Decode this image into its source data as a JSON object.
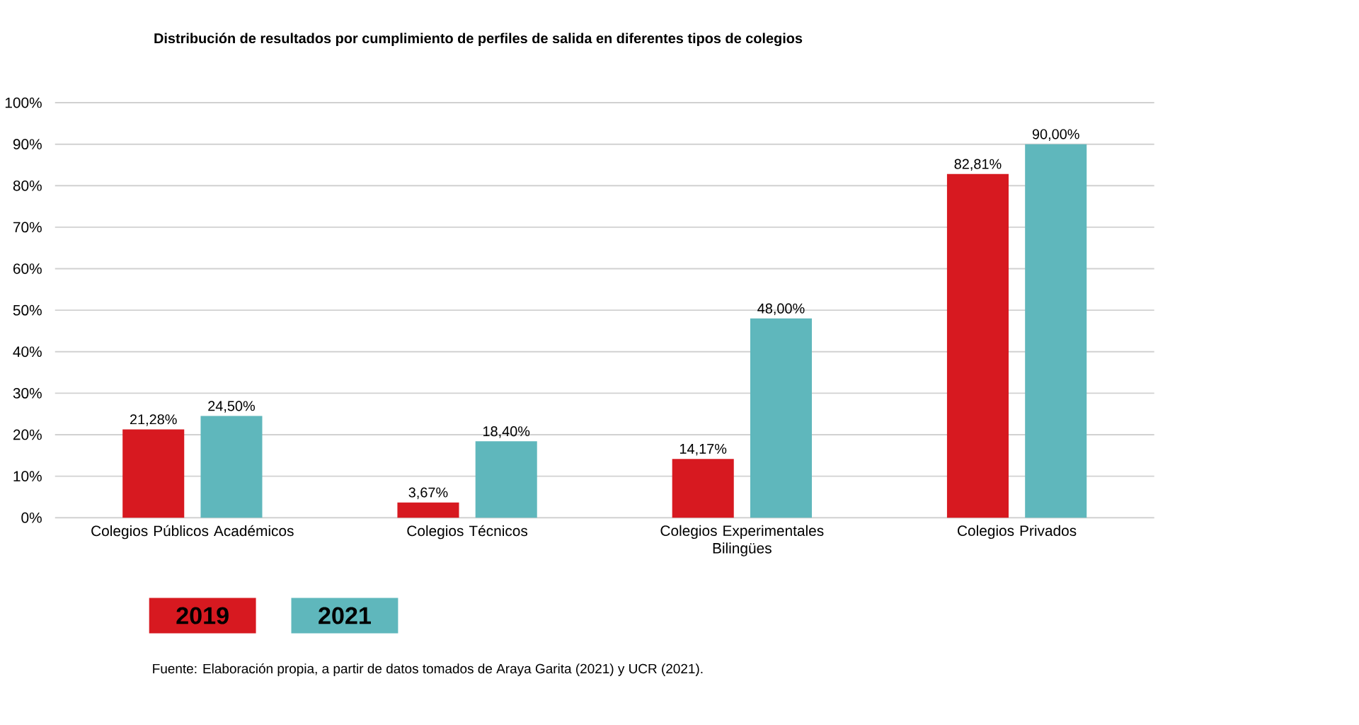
{
  "chart_data": {
    "type": "bar",
    "title": "Distribución de resultados por cumplimiento de perfiles de salida en diferentes tipos de colegios",
    "categories": [
      "Colegios Públicos Académicos",
      "Colegios Técnicos",
      "Colegios Experimentales Bilingües",
      "Colegios Privados"
    ],
    "series": [
      {
        "name": "2019",
        "color": "#d71920",
        "values": [
          21.28,
          3.67,
          14.17,
          82.81
        ],
        "value_labels": [
          "21,28%",
          "3,67%",
          "14,17%",
          "82,81%"
        ]
      },
      {
        "name": "2021",
        "color": "#5fb7bc",
        "values": [
          24.5,
          18.4,
          48.0,
          90.0
        ],
        "value_labels": [
          "24,50%",
          "18,40%",
          "48,00%",
          "90,00%"
        ]
      }
    ],
    "ylim": [
      0,
      100
    ],
    "yticks": [
      {
        "value": 0,
        "label": "0%"
      },
      {
        "value": 10,
        "label": "10%"
      },
      {
        "value": 20,
        "label": "20%"
      },
      {
        "value": 30,
        "label": "30%"
      },
      {
        "value": 40,
        "label": "40%"
      },
      {
        "value": 50,
        "label": "50%"
      },
      {
        "value": 60,
        "label": "60%"
      },
      {
        "value": 70,
        "label": "70%"
      },
      {
        "value": 80,
        "label": "80%"
      },
      {
        "value": 90,
        "label": "90%"
      },
      {
        "value": 100,
        "label": "100%"
      }
    ],
    "grid": "y",
    "legend": "bottom left",
    "annotations": [
      "Fuente: Elaboración propia, a partir de datos tomados de Araya Garita (2021) y UCR (2021)."
    ]
  }
}
